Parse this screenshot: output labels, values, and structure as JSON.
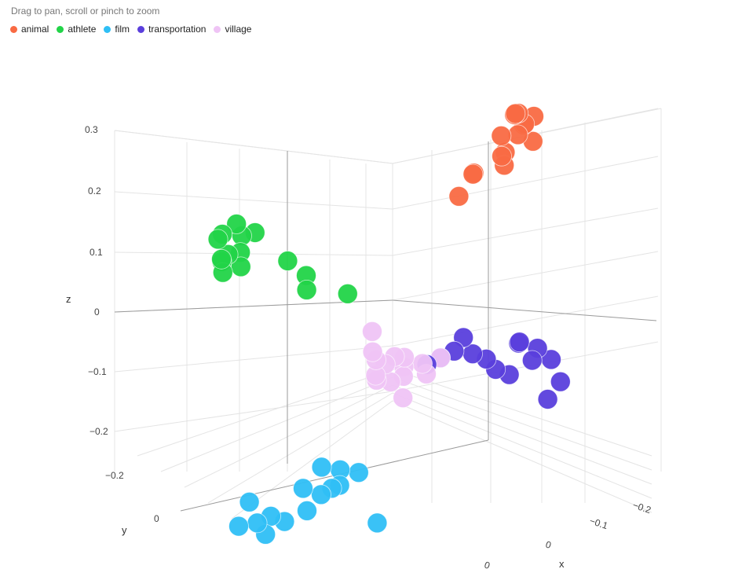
{
  "hint": "Drag to pan, scroll or pinch to zoom",
  "chart_data": {
    "type": "scatter3d",
    "title": "",
    "xlabel": "x",
    "ylabel": "y",
    "zlabel": "z",
    "zlim": [
      -0.25,
      0.32
    ],
    "z_ticks": [
      "0.3",
      "0.2",
      "0.1",
      "0",
      "−0.1",
      "−0.2"
    ],
    "y_ticks": [
      "−0.2",
      "0"
    ],
    "x_ticks": [
      "−0.2",
      "−0.1",
      "0",
      "0"
    ],
    "grid": true,
    "legend_position": "top-left",
    "series": [
      {
        "name": "animal",
        "color": "#f96a43",
        "points": [
          {
            "x": -0.16,
            "y": 0.1,
            "z": 0.27
          },
          {
            "x": -0.18,
            "y": 0.08,
            "z": 0.26
          },
          {
            "x": -0.15,
            "y": 0.12,
            "z": 0.28
          },
          {
            "x": -0.17,
            "y": 0.11,
            "z": 0.25
          },
          {
            "x": -0.19,
            "y": 0.09,
            "z": 0.24
          },
          {
            "x": -0.14,
            "y": 0.13,
            "z": 0.25
          },
          {
            "x": -0.16,
            "y": 0.07,
            "z": 0.23
          },
          {
            "x": -0.18,
            "y": 0.12,
            "z": 0.22
          },
          {
            "x": -0.2,
            "y": 0.1,
            "z": 0.25
          },
          {
            "x": -0.15,
            "y": 0.09,
            "z": 0.21
          },
          {
            "x": -0.17,
            "y": 0.06,
            "z": 0.19
          },
          {
            "x": -0.13,
            "y": 0.11,
            "z": 0.2
          },
          {
            "x": -0.12,
            "y": 0.05,
            "z": 0.18
          },
          {
            "x": -0.14,
            "y": 0.03,
            "z": 0.17
          },
          {
            "x": -0.1,
            "y": 0.04,
            "z": 0.15
          }
        ]
      },
      {
        "name": "athlete",
        "color": "#22d448",
        "points": [
          {
            "x": 0.14,
            "y": -0.2,
            "z": 0.17
          },
          {
            "x": 0.16,
            "y": -0.22,
            "z": 0.15
          },
          {
            "x": 0.12,
            "y": -0.21,
            "z": 0.14
          },
          {
            "x": 0.15,
            "y": -0.18,
            "z": 0.13
          },
          {
            "x": 0.17,
            "y": -0.2,
            "z": 0.12
          },
          {
            "x": 0.13,
            "y": -0.23,
            "z": 0.11
          },
          {
            "x": 0.14,
            "y": -0.19,
            "z": 0.1
          },
          {
            "x": 0.16,
            "y": -0.21,
            "z": 0.16
          },
          {
            "x": 0.12,
            "y": -0.18,
            "z": 0.15
          },
          {
            "x": 0.15,
            "y": -0.22,
            "z": 0.09
          },
          {
            "x": 0.18,
            "y": -0.19,
            "z": 0.13
          },
          {
            "x": 0.08,
            "y": -0.15,
            "z": 0.09
          },
          {
            "x": 0.06,
            "y": -0.13,
            "z": 0.06
          },
          {
            "x": 0.05,
            "y": -0.14,
            "z": 0.03
          },
          {
            "x": 0.02,
            "y": -0.08,
            "z": 0.02
          }
        ]
      },
      {
        "name": "film",
        "color": "#2fbff5",
        "points": [
          {
            "x": 0.18,
            "y": 0.08,
            "z": -0.18
          },
          {
            "x": 0.2,
            "y": 0.06,
            "z": -0.17
          },
          {
            "x": 0.16,
            "y": 0.1,
            "z": -0.19
          },
          {
            "x": 0.19,
            "y": 0.09,
            "z": -0.2
          },
          {
            "x": 0.21,
            "y": 0.07,
            "z": -0.21
          },
          {
            "x": 0.17,
            "y": 0.05,
            "z": -0.22
          },
          {
            "x": 0.22,
            "y": 0.04,
            "z": -0.2
          },
          {
            "x": 0.23,
            "y": 0.06,
            "z": -0.23
          },
          {
            "x": 0.24,
            "y": 0.02,
            "z": -0.25
          },
          {
            "x": 0.25,
            "y": 0.0,
            "z": -0.24
          },
          {
            "x": 0.26,
            "y": -0.02,
            "z": -0.25
          },
          {
            "x": 0.27,
            "y": 0.01,
            "z": -0.26
          },
          {
            "x": 0.28,
            "y": -0.04,
            "z": -0.25
          },
          {
            "x": 0.24,
            "y": -0.06,
            "z": -0.23
          },
          {
            "x": 0.14,
            "y": 0.12,
            "z": -0.28
          }
        ]
      },
      {
        "name": "transportation",
        "color": "#5a3fdc",
        "points": [
          {
            "x": -0.06,
            "y": 0.22,
            "z": -0.05
          },
          {
            "x": -0.08,
            "y": 0.2,
            "z": -0.06
          },
          {
            "x": -0.07,
            "y": 0.24,
            "z": -0.08
          },
          {
            "x": -0.09,
            "y": 0.23,
            "z": -0.07
          },
          {
            "x": -0.1,
            "y": 0.25,
            "z": -0.09
          },
          {
            "x": -0.05,
            "y": 0.21,
            "z": -0.1
          },
          {
            "x": -0.04,
            "y": 0.19,
            "z": -0.09
          },
          {
            "x": -0.03,
            "y": 0.18,
            "z": -0.07
          },
          {
            "x": -0.02,
            "y": 0.16,
            "z": -0.06
          },
          {
            "x": 0.0,
            "y": 0.14,
            "z": -0.05
          },
          {
            "x": 0.01,
            "y": 0.12,
            "z": -0.06
          },
          {
            "x": 0.02,
            "y": 0.1,
            "z": -0.07
          },
          {
            "x": -0.01,
            "y": 0.15,
            "z": -0.03
          },
          {
            "x": -0.11,
            "y": 0.26,
            "z": -0.13
          },
          {
            "x": -0.12,
            "y": 0.22,
            "z": -0.17
          }
        ]
      },
      {
        "name": "village",
        "color": "#efc4f5",
        "points": [
          {
            "x": 0.05,
            "y": 0.06,
            "z": -0.05
          },
          {
            "x": 0.06,
            "y": 0.05,
            "z": -0.06
          },
          {
            "x": 0.04,
            "y": 0.07,
            "z": -0.07
          },
          {
            "x": 0.07,
            "y": 0.04,
            "z": -0.05
          },
          {
            "x": 0.05,
            "y": 0.08,
            "z": -0.08
          },
          {
            "x": 0.06,
            "y": 0.03,
            "z": -0.09
          },
          {
            "x": 0.03,
            "y": 0.06,
            "z": -0.06
          },
          {
            "x": 0.08,
            "y": 0.05,
            "z": -0.07
          },
          {
            "x": 0.04,
            "y": 0.04,
            "z": -0.1
          },
          {
            "x": 0.02,
            "y": 0.09,
            "z": -0.07
          },
          {
            "x": 0.03,
            "y": 0.11,
            "z": -0.08
          },
          {
            "x": 0.05,
            "y": 0.01,
            "z": -0.05
          },
          {
            "x": 0.06,
            "y": 0.09,
            "z": -0.11
          },
          {
            "x": 0.01,
            "y": 0.12,
            "z": -0.06
          },
          {
            "x": 0.06,
            "y": 0.02,
            "z": -0.01
          }
        ]
      }
    ]
  }
}
